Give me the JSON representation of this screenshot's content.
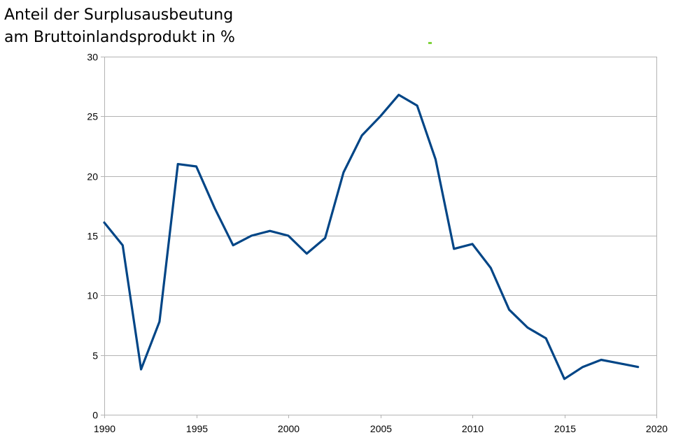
{
  "chart_data": {
    "type": "line",
    "title_lines": [
      "Anteil der Surplusausbeutung",
      "am Bruttoinlandsprodukt in %"
    ],
    "xlabel": "",
    "ylabel": "",
    "xlim": [
      1990,
      2020
    ],
    "ylim": [
      0,
      30
    ],
    "x_ticks": [
      1990,
      1995,
      2000,
      2005,
      2010,
      2015,
      2020
    ],
    "y_ticks": [
      0,
      5,
      10,
      15,
      20,
      25,
      30
    ],
    "grid": "horizontal",
    "legend": "none",
    "series": [
      {
        "color": "#004586",
        "x": [
          1990,
          1991,
          1992,
          1993,
          1994,
          1995,
          1996,
          1997,
          1998,
          1999,
          2000,
          2001,
          2002,
          2003,
          2004,
          2005,
          2006,
          2007,
          2008,
          2009,
          2010,
          2011,
          2012,
          2013,
          2014,
          2015,
          2016,
          2017,
          2018,
          2019
        ],
        "y": [
          16.1,
          14.2,
          3.8,
          7.8,
          21.0,
          20.8,
          17.3,
          14.2,
          15.0,
          15.4,
          15.0,
          13.5,
          14.8,
          20.3,
          23.4,
          25.0,
          26.8,
          25.9,
          21.4,
          13.9,
          14.3,
          12.3,
          8.8,
          7.3,
          6.4,
          3.0,
          4.0,
          4.6,
          4.3,
          4.0
        ]
      }
    ]
  }
}
